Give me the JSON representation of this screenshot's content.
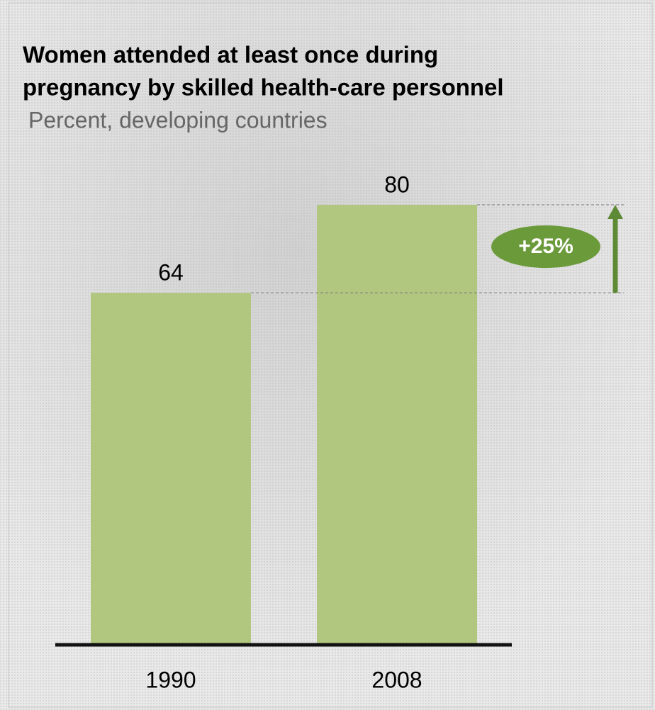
{
  "chart_data": {
    "type": "bar",
    "title": [
      "Women attended at least once during",
      "pregnancy by skilled health-care personnel"
    ],
    "subtitle": "Percent, developing countries",
    "categories": [
      "1990",
      "2008"
    ],
    "values": [
      64,
      80
    ],
    "color": "#b1c77f",
    "annotation": "+25%"
  }
}
